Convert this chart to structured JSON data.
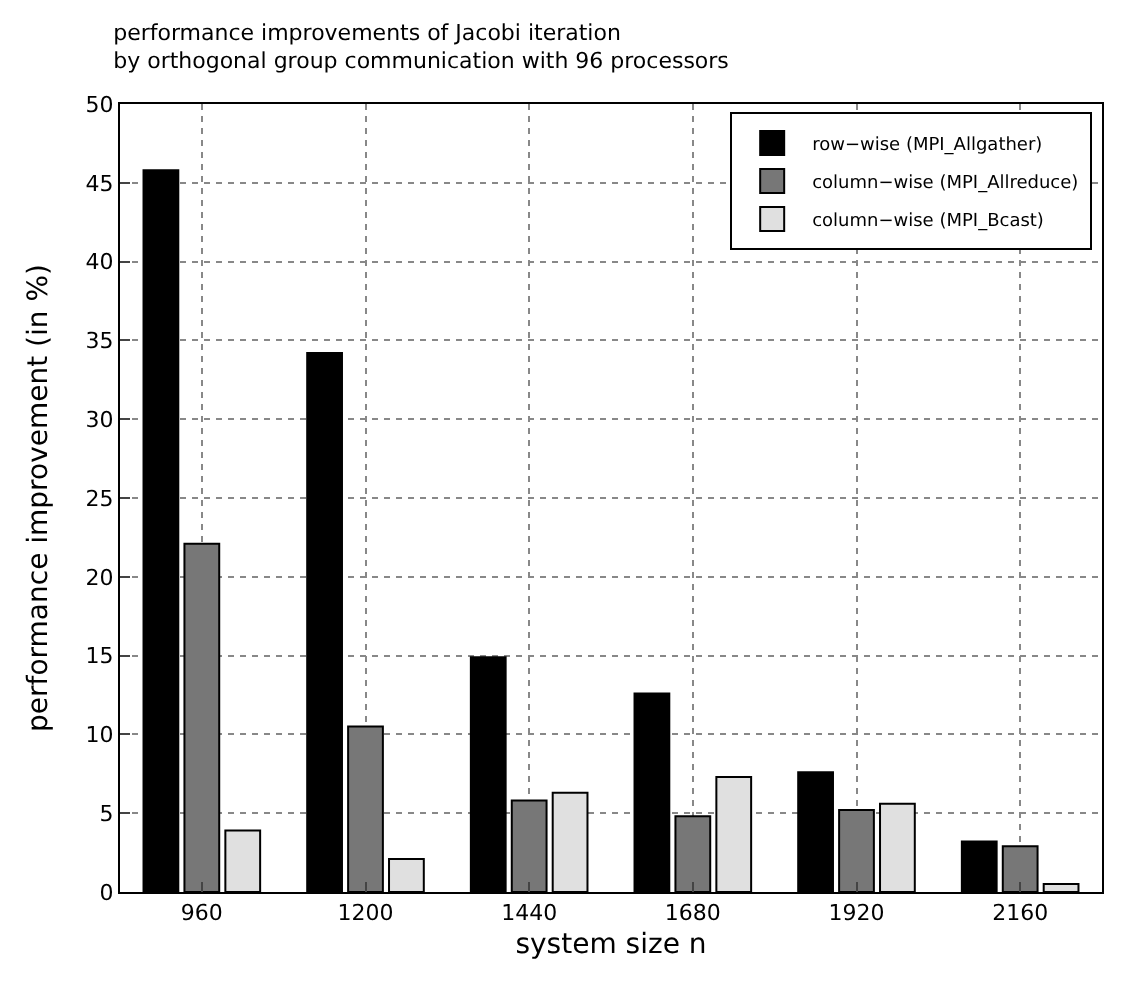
{
  "chart_data": {
    "type": "bar",
    "title": "performance improvements of Jacobi iteration\nby orthogonal group communication with 96 processors",
    "xlabel": "system size n",
    "ylabel": "performance improvement (in %)",
    "categories": [
      "960",
      "1200",
      "1440",
      "1680",
      "1920",
      "2160"
    ],
    "series": [
      {
        "name": "row−wise (MPI_Allgather)",
        "color": "#000000",
        "values": [
          45.8,
          34.2,
          14.9,
          12.6,
          7.6,
          3.2
        ]
      },
      {
        "name": "column−wise (MPI_Allreduce)",
        "color": "#777777",
        "values": [
          22.1,
          10.5,
          5.8,
          4.8,
          5.2,
          2.9
        ]
      },
      {
        "name": "column−wise (MPI_Bcast)",
        "color": "#e0e0e0",
        "values": [
          3.9,
          2.1,
          6.3,
          7.3,
          5.6,
          0.5
        ]
      }
    ],
    "ylim": [
      0,
      50
    ],
    "yticks": [
      0,
      5,
      10,
      15,
      20,
      25,
      30,
      35,
      40,
      45,
      50
    ],
    "grid": true,
    "legend": "top right"
  }
}
